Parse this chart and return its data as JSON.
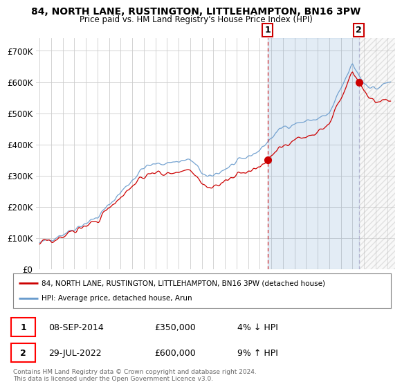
{
  "title1": "84, NORTH LANE, RUSTINGTON, LITTLEHAMPTON, BN16 3PW",
  "title2": "Price paid vs. HM Land Registry's House Price Index (HPI)",
  "ylabel_ticks": [
    "£0",
    "£100K",
    "£200K",
    "£300K",
    "£400K",
    "£500K",
    "£600K",
    "£700K"
  ],
  "ytick_vals": [
    0,
    100000,
    200000,
    300000,
    400000,
    500000,
    600000,
    700000
  ],
  "ylim": [
    0,
    740000
  ],
  "xlim_start": 1994.7,
  "xlim_end": 2025.7,
  "legend_line1": "84, NORTH LANE, RUSTINGTON, LITTLEHAMPTON, BN16 3PW (detached house)",
  "legend_line2": "HPI: Average price, detached house, Arun",
  "sale1_date": "08-SEP-2014",
  "sale1_price": "£350,000",
  "sale1_hpi": "4% ↓ HPI",
  "sale2_date": "29-JUL-2022",
  "sale2_price": "£600,000",
  "sale2_hpi": "9% ↑ HPI",
  "footnote": "Contains HM Land Registry data © Crown copyright and database right 2024.\nThis data is licensed under the Open Government Licence v3.0.",
  "line_color_red": "#cc0000",
  "line_color_blue": "#6699cc",
  "shade_color": "#ddeeff",
  "background_color": "#ffffff",
  "grid_color": "#cccccc",
  "sale1_x": 2014.69,
  "sale1_y": 350000,
  "sale2_x": 2022.57,
  "sale2_y": 600000
}
